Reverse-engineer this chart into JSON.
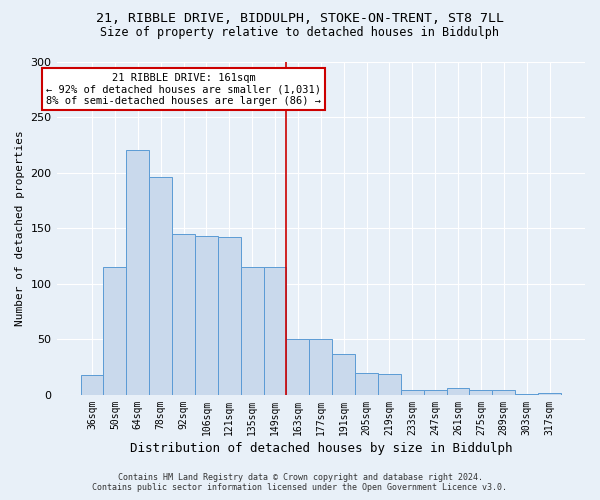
{
  "title_line1": "21, RIBBLE DRIVE, BIDDULPH, STOKE-ON-TRENT, ST8 7LL",
  "title_line2": "Size of property relative to detached houses in Biddulph",
  "xlabel": "Distribution of detached houses by size in Biddulph",
  "ylabel": "Number of detached properties",
  "categories": [
    "36sqm",
    "50sqm",
    "64sqm",
    "78sqm",
    "92sqm",
    "106sqm",
    "121sqm",
    "135sqm",
    "149sqm",
    "163sqm",
    "177sqm",
    "191sqm",
    "205sqm",
    "219sqm",
    "233sqm",
    "247sqm",
    "261sqm",
    "275sqm",
    "289sqm",
    "303sqm",
    "317sqm"
  ],
  "values": [
    18,
    115,
    220,
    196,
    145,
    143,
    142,
    115,
    115,
    50,
    50,
    37,
    20,
    19,
    4,
    4,
    6,
    4,
    4,
    1,
    2
  ],
  "bar_color": "#c9d9ec",
  "bar_edge_color": "#5b9bd5",
  "vline_x_idx": 9,
  "annotation_text_line1": "21 RIBBLE DRIVE: 161sqm",
  "annotation_text_line2": "← 92% of detached houses are smaller (1,031)",
  "annotation_text_line3": "8% of semi-detached houses are larger (86) →",
  "annotation_box_color": "#ffffff",
  "annotation_box_edge_color": "#cc0000",
  "vline_color": "#cc0000",
  "footer_line1": "Contains HM Land Registry data © Crown copyright and database right 2024.",
  "footer_line2": "Contains public sector information licensed under the Open Government Licence v3.0.",
  "ylim": [
    0,
    300
  ],
  "yticks": [
    0,
    50,
    100,
    150,
    200,
    250,
    300
  ],
  "background_color": "#e8f0f8",
  "plot_bg_color": "#e8f0f8"
}
